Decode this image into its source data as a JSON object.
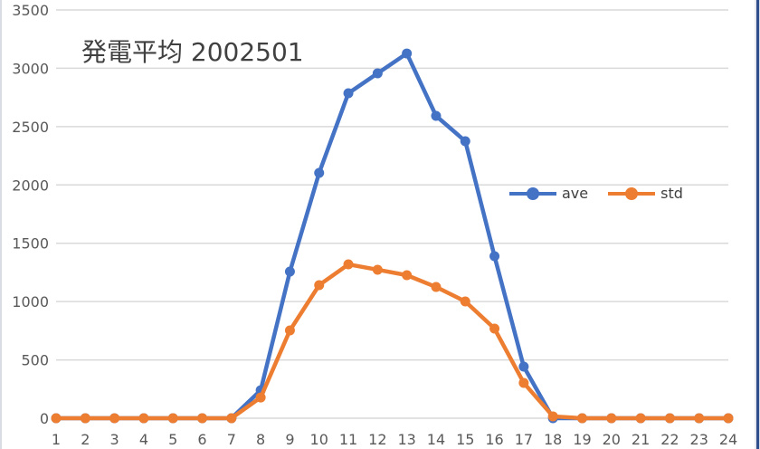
{
  "chart_data": {
    "type": "line",
    "title": "発電平均 2002501",
    "xlabel": "",
    "ylabel": "",
    "categories": [
      "1",
      "2",
      "3",
      "4",
      "5",
      "6",
      "7",
      "8",
      "9",
      "10",
      "11",
      "12",
      "13",
      "14",
      "15",
      "16",
      "17",
      "18",
      "19",
      "20",
      "21",
      "22",
      "23",
      "24"
    ],
    "series": [
      {
        "name": "ave",
        "color": "#4472c4",
        "values": [
          0,
          0,
          0,
          0,
          0,
          0,
          0,
          240,
          1257,
          2103,
          2786,
          2957,
          3127,
          2592,
          2375,
          1389,
          442,
          0,
          0,
          0,
          0,
          0,
          0,
          0
        ]
      },
      {
        "name": "std",
        "color": "#ed7d31",
        "values": [
          0,
          0,
          0,
          0,
          0,
          0,
          0,
          178,
          753,
          1141,
          1319,
          1273,
          1226,
          1125,
          1001,
          768,
          303,
          16,
          0,
          0,
          0,
          0,
          0,
          0
        ]
      }
    ],
    "ylim": [
      0,
      3500
    ],
    "yticks": [
      0,
      500,
      1000,
      1500,
      2000,
      2500,
      3000,
      3500
    ],
    "grid": true,
    "legend_position": "right-middle (inside plot)"
  },
  "title": "発電平均 2002501",
  "legend": [
    {
      "label": "ave",
      "color": "#4472c4"
    },
    {
      "label": "std",
      "color": "#ed7d31"
    }
  ],
  "colors": {
    "gridline": "#d9d9d9",
    "tick_text": "#595959",
    "title_text": "#404040"
  }
}
